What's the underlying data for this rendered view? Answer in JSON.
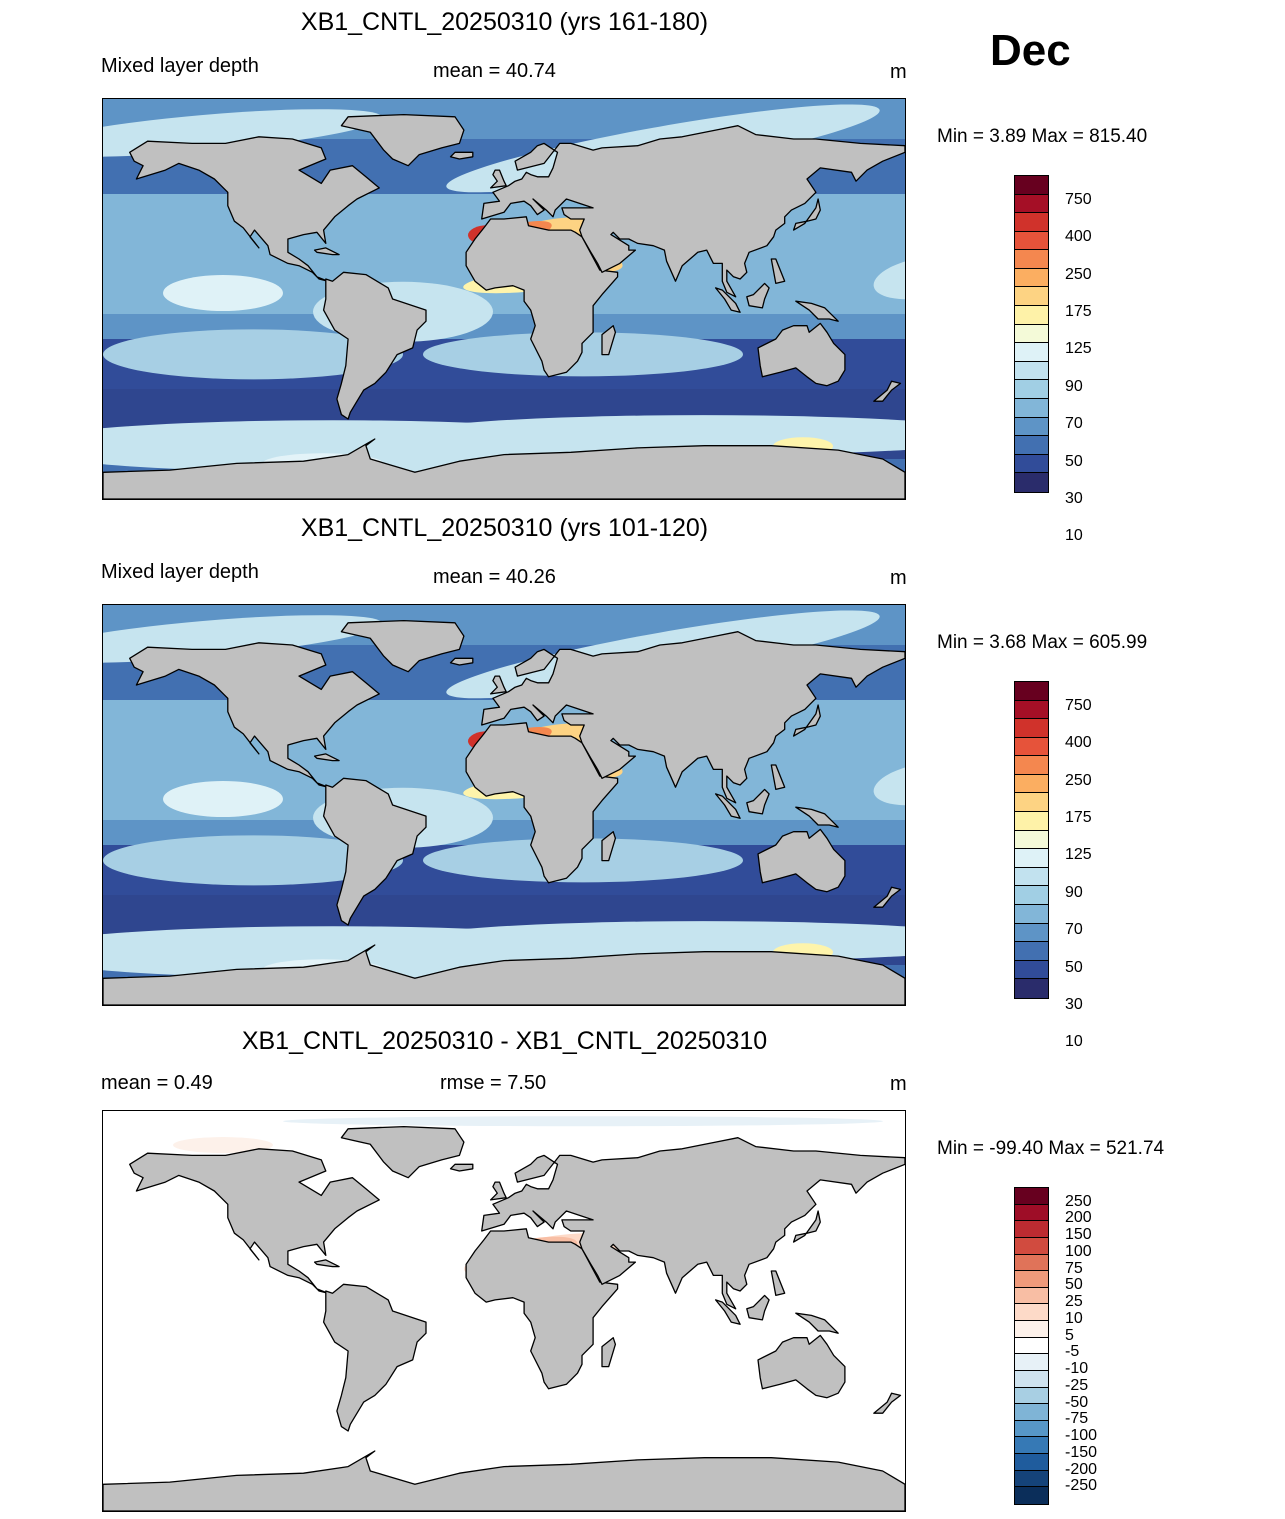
{
  "month": "Dec",
  "panels": [
    {
      "title": "XB1_CNTL_20250310 (yrs 161-180)",
      "left_label": "Mixed layer depth",
      "center_label": "mean =  40.74",
      "units": "m",
      "minmax": "Min =   3.89 Max = 815.40"
    },
    {
      "title": "XB1_CNTL_20250310 (yrs 101-120)",
      "left_label": "Mixed layer depth",
      "center_label": "mean =  40.26",
      "units": "m",
      "minmax": "Min =   3.68 Max = 605.99"
    },
    {
      "title": "XB1_CNTL_20250310 - XB1_CNTL_20250310",
      "left_label": "mean =   0.49",
      "center_label": "rmse =   7.50",
      "units": "m",
      "minmax": "Min = -99.40 Max = 521.74"
    }
  ],
  "colorbar_abs": {
    "labels": [
      "750",
      "400",
      "250",
      "175",
      "125",
      "90",
      "70",
      "50",
      "30",
      "10"
    ],
    "colors": [
      "#67001f",
      "#a50f26",
      "#d0322b",
      "#e6533a",
      "#f4874f",
      "#fbae61",
      "#fdd383",
      "#fef2a8",
      "#f4fad8",
      "#def2f7",
      "#c2e2ef",
      "#a1cfe4",
      "#82b6d8",
      "#5e94c6",
      "#4270b1",
      "#314c99",
      "#2a2c6b"
    ]
  },
  "colorbar_diff": {
    "labels": [
      "250",
      "200",
      "150",
      "100",
      "75",
      "50",
      "25",
      "10",
      "5",
      "-5",
      "-10",
      "-25",
      "-50",
      "-75",
      "-100",
      "-150",
      "-200",
      "-250"
    ],
    "colors": [
      "#67001f",
      "#9e0d27",
      "#bc2b31",
      "#d14b3f",
      "#e07359",
      "#ef9a7b",
      "#f8bea4",
      "#fddac8",
      "#fdf1ea",
      "#ffffff",
      "#e7f1f7",
      "#cfe3ef",
      "#a8cfe3",
      "#7fb4d6",
      "#5797c7",
      "#3679b5",
      "#1f5c9d",
      "#154379",
      "#0b2e5a"
    ]
  },
  "land_color": "#c0c0c0"
}
